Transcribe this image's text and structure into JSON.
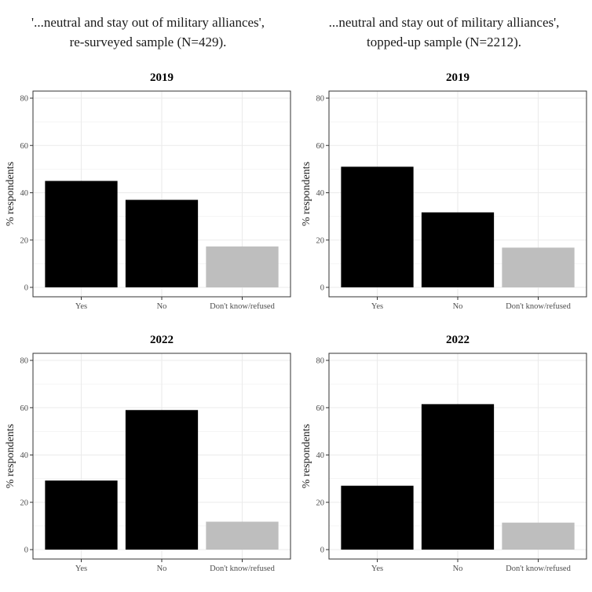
{
  "column_titles": [
    {
      "line1": "'...neutral and stay out of military alliances',",
      "line2": "re-surveyed sample (N=429)."
    },
    {
      "line1": "...neutral and stay out of military alliances',",
      "line2": "topped-up sample (N=2212)."
    }
  ],
  "colors": {
    "main_bar": "#000000",
    "dk_bar": "#bebebe",
    "grid": "#ebebeb",
    "frame": "#333333"
  },
  "chart_data": [
    {
      "type": "bar",
      "title": "2019",
      "ylabel": "% respondents",
      "ylim": [
        0,
        84
      ],
      "yticks": [
        0,
        20,
        40,
        60,
        80
      ],
      "categories": [
        "Yes",
        "No",
        "Don't know/refused"
      ],
      "values": [
        45,
        37,
        17.3
      ]
    },
    {
      "type": "bar",
      "title": "2019",
      "ylabel": "% respondents",
      "ylim": [
        0,
        84
      ],
      "yticks": [
        0,
        20,
        40,
        60,
        80
      ],
      "categories": [
        "Yes",
        "No",
        "Don't know/refused"
      ],
      "values": [
        51,
        31.7,
        16.8
      ]
    },
    {
      "type": "bar",
      "title": "2022",
      "ylabel": "% respondents",
      "ylim": [
        0,
        84
      ],
      "yticks": [
        0,
        20,
        40,
        60,
        80
      ],
      "categories": [
        "Yes",
        "No",
        "Don't know/refused"
      ],
      "values": [
        29.2,
        59,
        11.8
      ]
    },
    {
      "type": "bar",
      "title": "2022",
      "ylabel": "% respondents",
      "ylim": [
        0,
        84
      ],
      "yticks": [
        0,
        20,
        40,
        60,
        80
      ],
      "categories": [
        "Yes",
        "No",
        "Don't know/refused"
      ],
      "values": [
        27,
        61.5,
        11.4
      ]
    }
  ]
}
